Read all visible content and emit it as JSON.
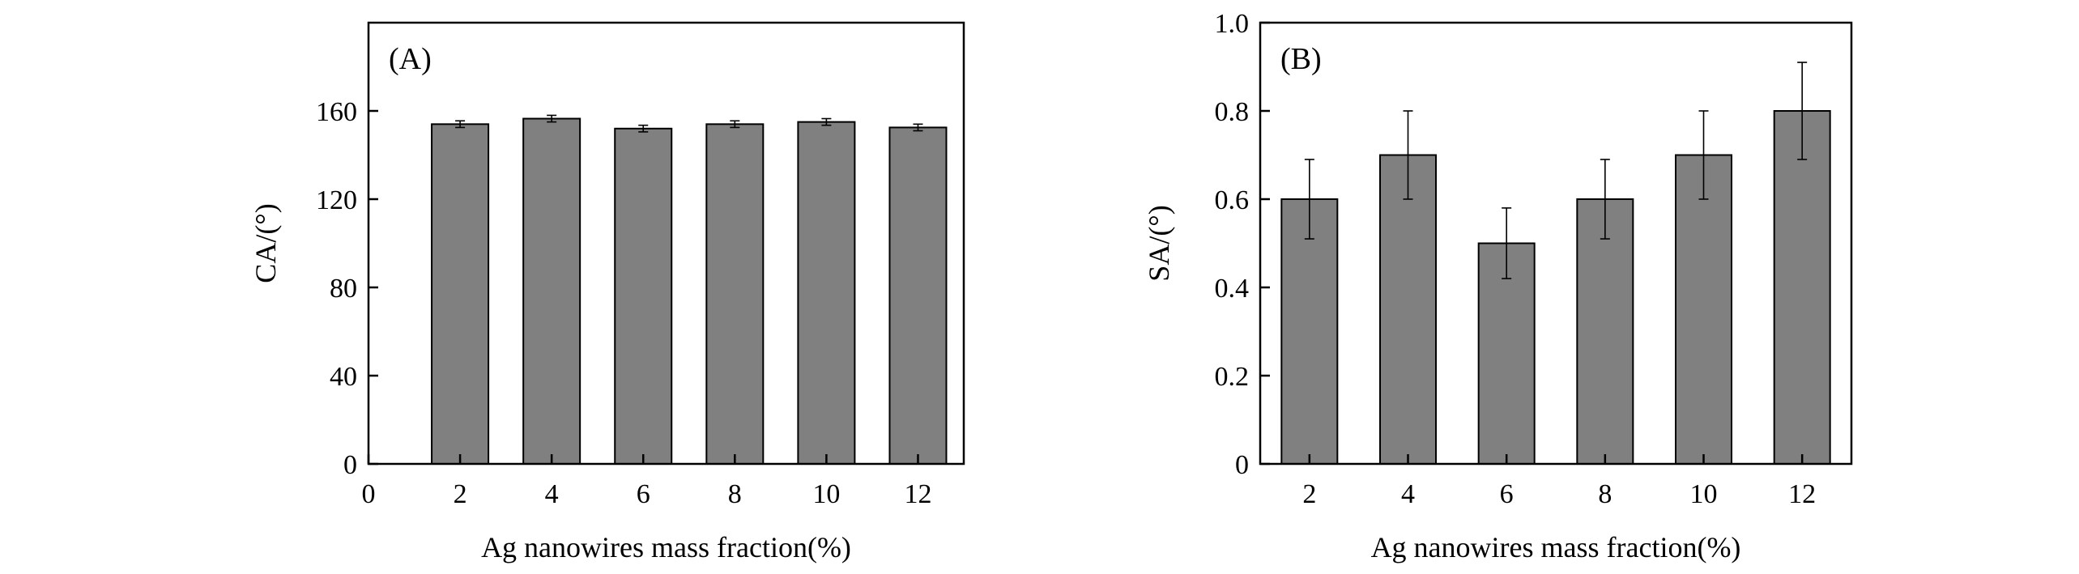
{
  "chart_data": [
    {
      "type": "bar",
      "panel_label": "(A)",
      "categories": [
        "2",
        "4",
        "6",
        "8",
        "10",
        "12"
      ],
      "x_tick_labels": [
        "0",
        "2",
        "4",
        "6",
        "8",
        "10",
        "12"
      ],
      "series": [
        {
          "values": [
            154,
            156.5,
            152,
            154,
            155,
            152.5
          ],
          "errors": [
            1.5,
            1.5,
            1.5,
            1.5,
            1.5,
            1.5
          ]
        }
      ],
      "xlabel": "Ag nanowires mass fraction(%)",
      "ylabel": "CA/(°)",
      "ylim": [
        0,
        200
      ],
      "y_ticks": [
        0,
        40,
        80,
        120,
        160
      ],
      "y_tick_labels": [
        "0",
        "40",
        "80",
        "120",
        "160"
      ],
      "bar_color": "#808080",
      "grid": false
    },
    {
      "type": "bar",
      "panel_label": "(B)",
      "categories": [
        "2",
        "4",
        "6",
        "8",
        "10",
        "12"
      ],
      "x_tick_labels": [
        "2",
        "4",
        "6",
        "8",
        "10",
        "12"
      ],
      "series": [
        {
          "values": [
            0.6,
            0.7,
            0.5,
            0.6,
            0.7,
            0.8
          ],
          "errors": [
            0.09,
            0.1,
            0.08,
            0.09,
            0.1,
            0.11
          ]
        }
      ],
      "xlabel": "Ag nanowires mass fraction(%)",
      "ylabel": "SA/(°)",
      "ylim": [
        0,
        1.0
      ],
      "y_ticks": [
        0,
        0.2,
        0.4,
        0.6,
        0.8,
        1.0
      ],
      "y_tick_labels": [
        "0",
        "0.2",
        "0.4",
        "0.6",
        "0.8",
        "1.0"
      ],
      "bar_color": "#808080",
      "grid": false
    }
  ]
}
